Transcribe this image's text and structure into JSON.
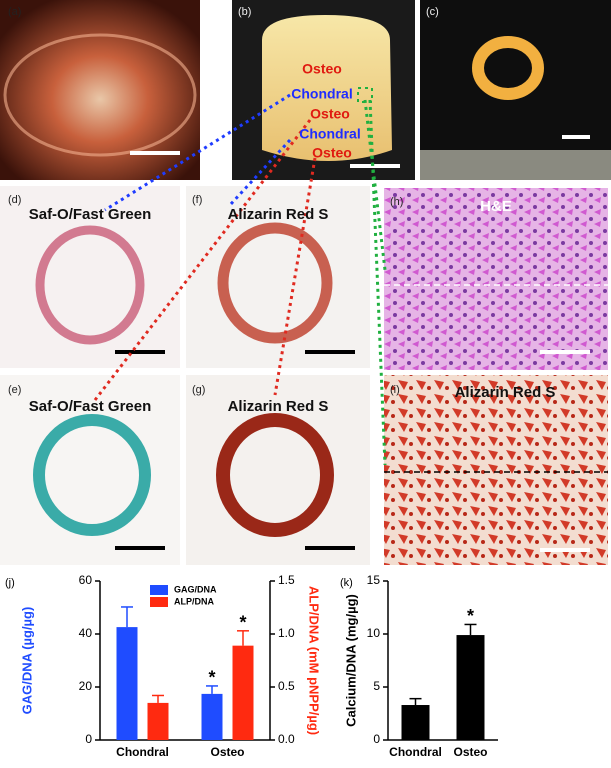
{
  "panels": [
    {
      "label": "(a)"
    },
    {
      "label": "(b)",
      "annotations": [
        "Osteo",
        "Chondral",
        "Osteo",
        "Chondral",
        "Osteo"
      ]
    },
    {
      "label": "(c)"
    },
    {
      "label": "(d)",
      "title": "Saf-O/Fast Green"
    },
    {
      "label": "(e)",
      "title": "Saf-O/Fast Green"
    },
    {
      "label": "(f)",
      "title": "Alizarin Red S"
    },
    {
      "label": "(g)",
      "title": "Alizarin Red S"
    },
    {
      "label": "(h)",
      "title": "H&E"
    },
    {
      "label": "(i)",
      "title": "Alizarin Red S"
    }
  ],
  "chart_data": [
    {
      "type": "bar",
      "panel_label": "(j)",
      "categories": [
        "Chondral",
        "Osteo"
      ],
      "ylabel": "GAG/DNA (µg/µg)",
      "y2label": "ALP/DNA (mM pNPP/µg)",
      "ylim": [
        0,
        60
      ],
      "yticks": [
        0,
        20,
        40,
        60
      ],
      "y2lim": [
        0,
        1.5
      ],
      "y2ticks": [
        {
          "value": 0,
          "label": "0.0"
        },
        {
          "value": 0.5,
          "label": "0.5"
        },
        {
          "value": 1,
          "label": "1.0"
        },
        {
          "value": 1.5,
          "label": "1.5"
        }
      ],
      "series": [
        {
          "name": "GAG/DNA",
          "color": "#1f4cff",
          "values": [
            42.6,
            17.4
          ],
          "errors": [
            7.6,
            3
          ],
          "annotations": [
            null,
            "*"
          ]
        },
        {
          "name": "ALP/DNA",
          "color": "#ff2a10",
          "axis": "y2",
          "values": [
            0.35,
            0.89
          ],
          "errors": [
            0.07,
            0.14
          ],
          "annotations": [
            null,
            "*"
          ]
        }
      ],
      "legend": "top"
    },
    {
      "type": "bar",
      "panel_label": "(k)",
      "categories": [
        "Chondral",
        "Osteo"
      ],
      "ylabel": "Calcium/DNA (mg/µg)",
      "ylim": [
        0,
        15
      ],
      "yticks": [
        0,
        5,
        10,
        15
      ],
      "series": [
        {
          "name": null,
          "color": "#000000",
          "values": [
            3.3,
            9.9
          ],
          "errors": [
            0.6,
            1.0
          ],
          "annotations": [
            null,
            "*"
          ]
        }
      ]
    }
  ]
}
